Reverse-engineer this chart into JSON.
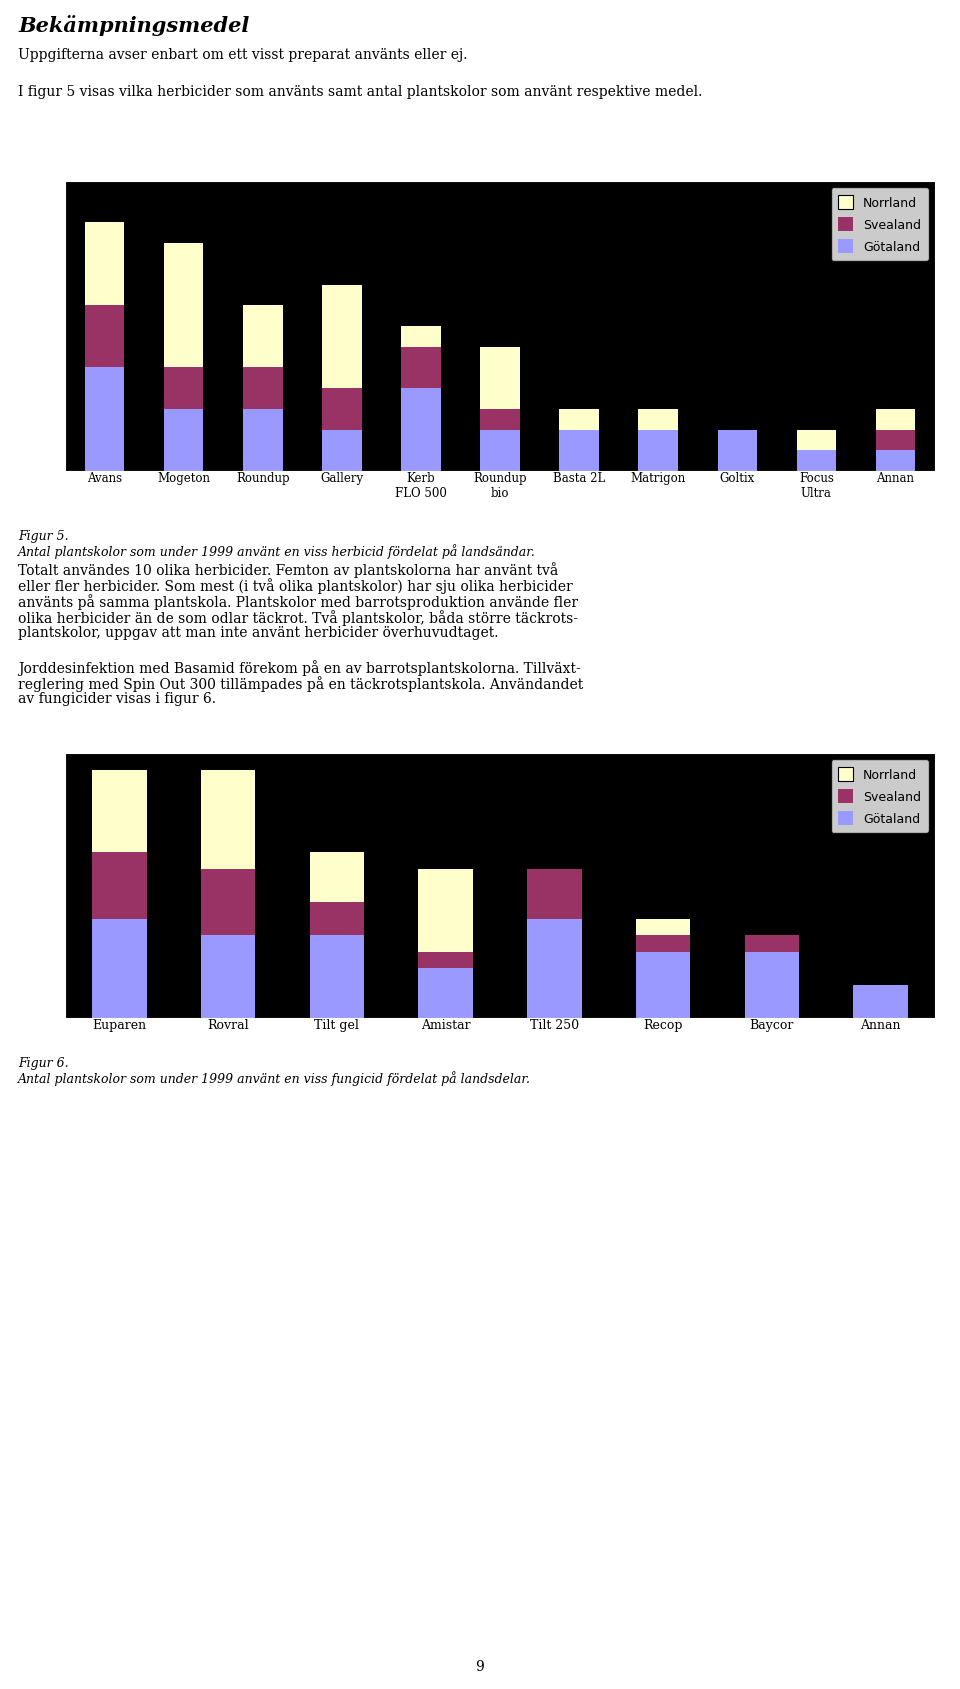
{
  "chart1": {
    "categories": [
      "Avans",
      "Mogeton",
      "Roundup",
      "Gallery",
      "Kerb\nFLO 500",
      "Roundup\nbio",
      "Basta 2L",
      "Matrigon",
      "Goltix",
      "Focus\nUltra",
      "Annan"
    ],
    "gotaland": [
      5,
      3,
      3,
      2,
      4,
      2,
      2,
      2,
      2,
      1,
      1
    ],
    "svealand": [
      3,
      2,
      2,
      2,
      2,
      1,
      0,
      0,
      0,
      0,
      1
    ],
    "norrland": [
      4,
      6,
      3,
      5,
      1,
      3,
      1,
      1,
      0,
      1,
      1
    ],
    "ylim": [
      0,
      14
    ],
    "yticks": [
      0,
      2,
      4,
      6,
      8,
      10,
      12,
      14
    ]
  },
  "chart2": {
    "categories": [
      "Euparen",
      "Rovral",
      "Tilt gel",
      "Amistar",
      "Tilt 250",
      "Recop",
      "Baycor",
      "Annan"
    ],
    "gotaland": [
      6,
      5,
      5,
      3,
      6,
      4,
      4,
      2
    ],
    "svealand": [
      4,
      4,
      2,
      1,
      3,
      1,
      1,
      0
    ],
    "norrland": [
      5,
      6,
      3,
      5,
      0,
      1,
      0,
      0
    ],
    "ylim": [
      0,
      16
    ],
    "yticks": [
      0,
      2,
      4,
      6,
      8,
      10,
      12,
      14,
      16
    ]
  },
  "colors": {
    "gotaland": "#9999FF",
    "svealand": "#993366",
    "norrland": "#FFFFCC"
  },
  "title": "Bekämpningsmedel",
  "subtitle1": "Uppgifterna avser enbart om ett visst preparat använts eller ej.",
  "subtitle2": "I figur 5 visas vilka herbicider som använts samt antal plantskolor som använt respektive medel.",
  "fig1_caption_line1": "Figur 5.",
  "fig1_caption_line2": "Antal plantskolor som under 1999 använt en viss herbicid fördelat på landsändar.",
  "body_text1_line1": "Totalt användes 10 olika herbicider. Femton av plantskolorna har använt två",
  "body_text1_line2": "eller fler herbicider. Som mest (i två olika plantskolor) har sju olika herbicider",
  "body_text1_line3": "använts på samma plantskola. Plantskolor med barrotsproduktion använde fler",
  "body_text1_line4": "olika herbicider än de som odlar täckrot. Två plantskolor, båda större täckrots-",
  "body_text1_line5": "plantskolor, uppgav att man inte använt herbicider överhuvudtaget.",
  "body_text2_line1": "Jorddesinfektion med Basamid förekom på en av barrotsplantskolorna. Tillväxt-",
  "body_text2_line2": "reglering med Spin Out 300 tillämpades på en täckrotsplantskola. Användandet",
  "body_text2_line3": "av fungicider visas i figur 6.",
  "fig2_caption_line1": "Figur 6.",
  "fig2_caption_line2": "Antal plantskolor som under 1999 använt en viss fungicid fördelat på landsdelar.",
  "page_number": "9"
}
